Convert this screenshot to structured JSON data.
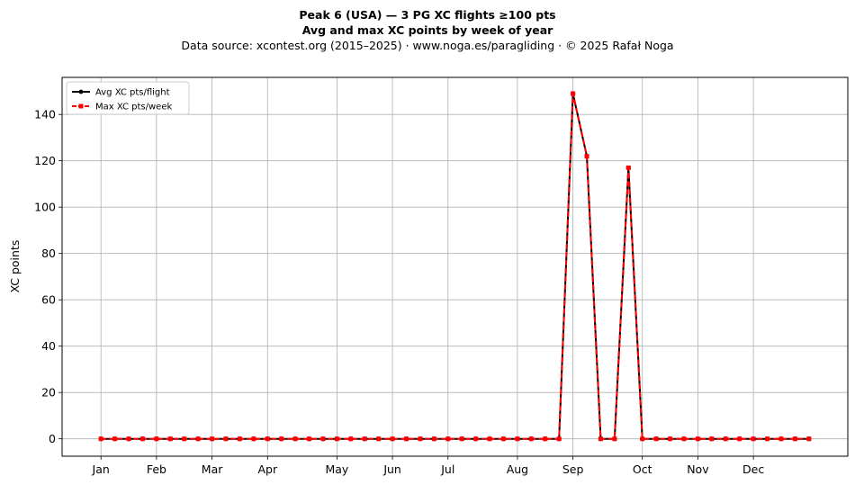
{
  "header": {
    "title_line1": "Peak 6 (USA)  —  3 PG XC flights ≥100 pts",
    "title_line2": "Avg and max XC points by week of year",
    "subtitle": "Data source: xcontest.org (2015–2025)  ·  www.noga.es/paragliding  ·  © 2025 Rafał Noga"
  },
  "chart_data": {
    "type": "line",
    "title": "Peak 6 (USA)  —  3 PG XC flights ≥100 pts",
    "xlabel": "",
    "ylabel": "XC points",
    "ylim": [
      -7.5,
      156
    ],
    "xlim": [
      -1.8,
      54.8
    ],
    "grid": true,
    "legend_position": "top-left",
    "x_ticks": [
      {
        "label": "Jan",
        "week": 1
      },
      {
        "label": "Feb",
        "week": 5
      },
      {
        "label": "Mar",
        "week": 9
      },
      {
        "label": "Apr",
        "week": 13
      },
      {
        "label": "May",
        "week": 18
      },
      {
        "label": "Jun",
        "week": 22
      },
      {
        "label": "Jul",
        "week": 26
      },
      {
        "label": "Aug",
        "week": 31
      },
      {
        "label": "Sep",
        "week": 35
      },
      {
        "label": "Oct",
        "week": 40
      },
      {
        "label": "Nov",
        "week": 44
      },
      {
        "label": "Dec",
        "week": 48
      }
    ],
    "y_ticks": [
      0,
      20,
      40,
      60,
      80,
      100,
      120,
      140
    ],
    "x": [
      1,
      2,
      3,
      4,
      5,
      6,
      7,
      8,
      9,
      10,
      11,
      12,
      13,
      14,
      15,
      16,
      17,
      18,
      19,
      20,
      21,
      22,
      23,
      24,
      25,
      26,
      27,
      28,
      29,
      30,
      31,
      32,
      33,
      34,
      35,
      36,
      37,
      38,
      39,
      40,
      41,
      42,
      43,
      44,
      45,
      46,
      47,
      48,
      49,
      50,
      51,
      52
    ],
    "series": [
      {
        "name": "Avg XC pts/flight",
        "color": "#000000",
        "style": "solid",
        "marker": "circle",
        "values": [
          0,
          0,
          0,
          0,
          0,
          0,
          0,
          0,
          0,
          0,
          0,
          0,
          0,
          0,
          0,
          0,
          0,
          0,
          0,
          0,
          0,
          0,
          0,
          0,
          0,
          0,
          0,
          0,
          0,
          0,
          0,
          0,
          0,
          0,
          149,
          122,
          0,
          0,
          117,
          0,
          0,
          0,
          0,
          0,
          0,
          0,
          0,
          0,
          0,
          0,
          0,
          0
        ]
      },
      {
        "name": "Max XC pts/week",
        "color": "#ff0000",
        "style": "dashed",
        "marker": "square",
        "values": [
          0,
          0,
          0,
          0,
          0,
          0,
          0,
          0,
          0,
          0,
          0,
          0,
          0,
          0,
          0,
          0,
          0,
          0,
          0,
          0,
          0,
          0,
          0,
          0,
          0,
          0,
          0,
          0,
          0,
          0,
          0,
          0,
          0,
          0,
          149,
          122,
          0,
          0,
          117,
          0,
          0,
          0,
          0,
          0,
          0,
          0,
          0,
          0,
          0,
          0,
          0,
          0
        ]
      }
    ]
  }
}
